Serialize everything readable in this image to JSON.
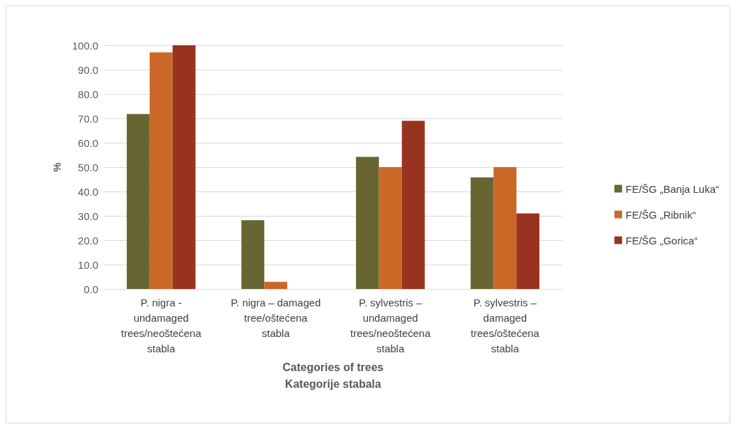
{
  "chart_data": {
    "type": "bar",
    "xlabel": "Categories of trees\nKategorije stabala",
    "ylabel": "%",
    "categories": [
      "P. nigra -\nundamaged\ntrees/neoštećena\nstabla",
      "P. nigra – damaged\ntree/oštećena\nstabla",
      "P. sylvestris –\nundamaged\ntrees/neoštećena\nstabla",
      "P. sylvestris –\ndamaged\ntrees/oštećena\nstabla"
    ],
    "series": [
      {
        "name": "FE/ŠG „Banja Luka“",
        "color": "#676632",
        "values": [
          71.8,
          28.2,
          54.2,
          45.8
        ]
      },
      {
        "name": "FE/ŠG „Ribnik“",
        "color": "#cb6828",
        "values": [
          97.1,
          2.9,
          50.0,
          50.0
        ]
      },
      {
        "name": "FE/ŠG „Gorica“",
        "color": "#97331e",
        "values": [
          100.0,
          0.0,
          69.0,
          31.0
        ]
      }
    ],
    "ylim": [
      0,
      100
    ],
    "yticks": [
      {
        "value": 0,
        "label": "0.0"
      },
      {
        "value": 10,
        "label": "10.0"
      },
      {
        "value": 20,
        "label": "20.0"
      },
      {
        "value": 30,
        "label": "30.0"
      },
      {
        "value": 40,
        "label": "40.0"
      },
      {
        "value": 50,
        "label": "50.0"
      },
      {
        "value": 60,
        "label": "60.0"
      },
      {
        "value": 70,
        "label": "70.0"
      },
      {
        "value": 80,
        "label": "80.0"
      },
      {
        "value": 90,
        "label": "90.0"
      },
      {
        "value": 100,
        "label": "100.0"
      }
    ],
    "grid": "y",
    "legend": "right"
  }
}
